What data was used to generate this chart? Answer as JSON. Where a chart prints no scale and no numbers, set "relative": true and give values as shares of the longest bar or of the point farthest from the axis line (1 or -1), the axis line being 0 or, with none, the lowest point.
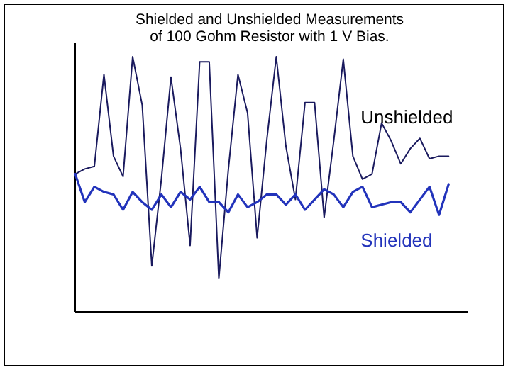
{
  "chart_data": {
    "type": "line",
    "title": "Shielded and Unshielded Measurements\nof 100 Gohm Resistor with 1 V Bias.",
    "relative": true,
    "categories": [
      null,
      null,
      null,
      null,
      null,
      null,
      null,
      null,
      null,
      null,
      null,
      null,
      null,
      null,
      null,
      null,
      null,
      null,
      null,
      null,
      null,
      null,
      null,
      null,
      null,
      null,
      null,
      null,
      null,
      null,
      null,
      null,
      null,
      null,
      null,
      null,
      null,
      null,
      null,
      null
    ],
    "series": [
      {
        "name": "Unshielded",
        "color": "#1a1a5e",
        "values": [
          0.54,
          0.56,
          0.57,
          0.93,
          0.61,
          0.53,
          1,
          0.81,
          0.18,
          0.52,
          0.92,
          0.64,
          0.26,
          0.98,
          0.98,
          0.13,
          0.56,
          0.93,
          0.78,
          0.29,
          0.67,
          1,
          0.65,
          0.44,
          0.82,
          0.82,
          0.37,
          0.67,
          0.99,
          0.61,
          0.52,
          0.54,
          0.74,
          0.67,
          0.58,
          0.64,
          0.68,
          0.6,
          0.61,
          0.61
        ]
      },
      {
        "name": "Shielded",
        "color": "#2233bb",
        "values": [
          0.54,
          0.43,
          0.49,
          0.47,
          0.46,
          0.4,
          0.47,
          0.43,
          0.4,
          0.46,
          0.41,
          0.47,
          0.44,
          0.49,
          0.43,
          0.43,
          0.39,
          0.46,
          0.41,
          0.43,
          0.46,
          0.46,
          0.42,
          0.46,
          0.4,
          0.44,
          0.48,
          0.46,
          0.41,
          0.47,
          0.49,
          0.41,
          0.42,
          0.43,
          0.43,
          0.39,
          0.44,
          0.49,
          0.38,
          0.5
        ]
      }
    ],
    "marker": "none",
    "line_style": "solid"
  }
}
